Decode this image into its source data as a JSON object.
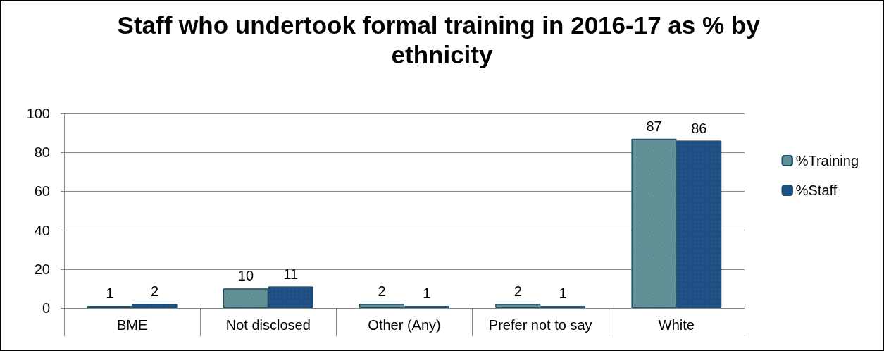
{
  "chart_data": {
    "type": "bar",
    "title": "Staff who undertook formal training in 2016-17 as % by ethnicity",
    "categories": [
      "BME",
      "Not disclosed",
      "Other (Any)",
      "Prefer not to say",
      "White"
    ],
    "series": [
      {
        "name": "%Training",
        "color": "#5f8f94",
        "values": [
          1,
          10,
          2,
          2,
          87
        ]
      },
      {
        "name": "%Staff",
        "color": "#1f4e85",
        "values": [
          2,
          11,
          1,
          1,
          86
        ]
      }
    ],
    "ylim": [
      0,
      100
    ],
    "yticks": [
      0,
      20,
      40,
      60,
      80,
      100
    ],
    "grid": "y",
    "legend": "right",
    "data_labels": true
  }
}
